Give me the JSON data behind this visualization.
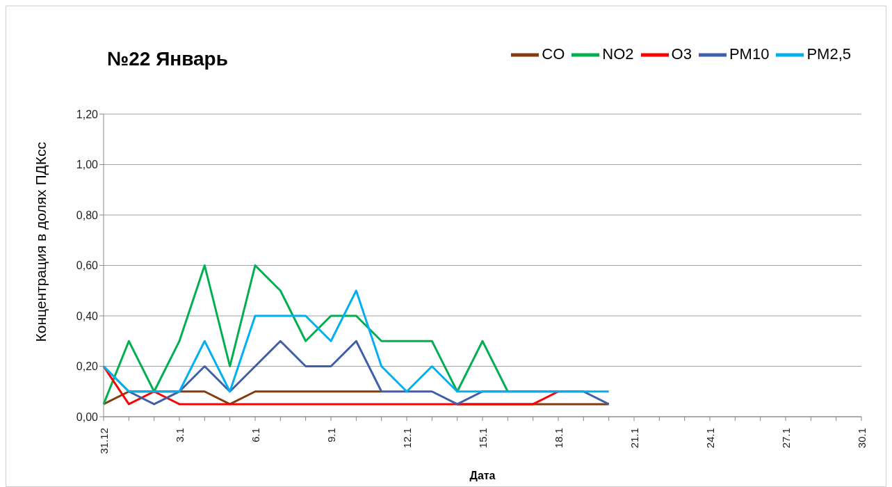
{
  "chart_data": {
    "type": "line",
    "title": "№22 Январь",
    "xlabel": "Дата",
    "ylabel": "Концентрация в долях ПДКсс",
    "categories": [
      "31.12",
      null,
      null,
      "3.1",
      null,
      null,
      "6.1",
      null,
      null,
      "9.1",
      null,
      null,
      "12.1",
      null,
      null,
      "15.1",
      null,
      null,
      "18.1",
      null,
      null,
      "21.1",
      null,
      null,
      "24.1",
      null,
      null,
      "27.1",
      null,
      null,
      "30.1"
    ],
    "series": [
      {
        "name": "CO",
        "color": "#843c0c",
        "values": [
          0.05,
          0.1,
          0.1,
          0.1,
          0.1,
          0.05,
          0.1,
          0.1,
          0.1,
          0.1,
          0.1,
          0.1,
          null,
          null,
          0.05,
          0.05,
          0.05,
          0.05,
          0.05,
          0.05,
          0.05,
          null,
          null,
          null,
          null,
          null,
          null,
          null,
          null,
          null,
          null
        ]
      },
      {
        "name": "NO2",
        "color": "#00b050",
        "values": [
          0.05,
          0.3,
          0.1,
          0.3,
          0.6,
          0.2,
          0.6,
          0.5,
          0.3,
          0.4,
          0.4,
          0.3,
          0.3,
          0.3,
          0.1,
          0.3,
          0.1,
          null,
          null,
          null,
          null,
          null,
          null,
          null,
          null,
          null,
          null,
          null,
          null,
          null,
          null
        ]
      },
      {
        "name": "O3",
        "color": "#ff0000",
        "values": [
          0.2,
          0.05,
          0.1,
          0.05,
          0.05,
          0.05,
          0.05,
          0.05,
          0.05,
          0.05,
          0.05,
          0.05,
          0.05,
          0.05,
          0.05,
          0.05,
          0.05,
          0.05,
          0.1,
          null,
          null,
          null,
          null,
          null,
          null,
          null,
          null,
          null,
          null,
          null,
          null
        ]
      },
      {
        "name": "PM10",
        "color": "#3f5faa",
        "values": [
          0.2,
          0.1,
          0.05,
          0.1,
          0.2,
          0.1,
          0.2,
          0.3,
          0.2,
          0.2,
          0.3,
          0.1,
          0.1,
          0.1,
          0.05,
          0.1,
          0.1,
          0.1,
          0.1,
          0.1,
          0.05,
          null,
          null,
          null,
          null,
          null,
          null,
          null,
          null,
          null,
          null
        ]
      },
      {
        "name": "PM2,5",
        "color": "#00b0f0",
        "values": [
          0.2,
          0.1,
          0.1,
          0.1,
          0.3,
          0.1,
          0.4,
          0.4,
          0.4,
          0.3,
          0.5,
          0.2,
          0.1,
          0.2,
          0.1,
          0.1,
          0.1,
          0.1,
          0.1,
          0.1,
          0.1,
          null,
          null,
          null,
          null,
          null,
          null,
          null,
          null,
          null,
          null
        ]
      }
    ],
    "ylim": [
      0,
      1.2
    ],
    "yticks": [
      {
        "value": 0,
        "label": "0,00"
      },
      {
        "value": 0.2,
        "label": "0,20"
      },
      {
        "value": 0.4,
        "label": "0,40"
      },
      {
        "value": 0.6,
        "label": "0,60"
      },
      {
        "value": 0.8,
        "label": "0,80"
      },
      {
        "value": 1.0,
        "label": "1,00"
      },
      {
        "value": 1.2,
        "label": "1,20"
      }
    ],
    "grid": "y",
    "legend": "top right",
    "marker": "none",
    "line_style": "solid"
  }
}
